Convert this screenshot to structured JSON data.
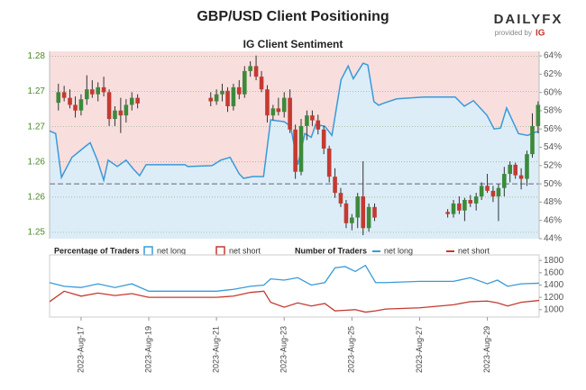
{
  "header": {
    "title": "GBP/USD Client Positioning",
    "subtitle": "IG Client Sentiment",
    "brand": "DAILYFX",
    "brand_note": "provided by",
    "brand_ig": "IG"
  },
  "chart_data": [
    {
      "type": "candlestick",
      "x": [
        16.33,
        16.5,
        16.67,
        16.83,
        17,
        17.17,
        17.33,
        17.5,
        17.67,
        17.83,
        18,
        18.17,
        18.33,
        18.5,
        18.67,
        20.83,
        21,
        21.17,
        21.33,
        21.5,
        21.67,
        21.83,
        22,
        22.17,
        22.33,
        22.5,
        22.67,
        22.83,
        23,
        23.17,
        23.33,
        23.5,
        23.67,
        23.83,
        24,
        24.17,
        24.33,
        24.5,
        24.67,
        24.83,
        25,
        25.17,
        25.33,
        25.5,
        25.67,
        27.83,
        28,
        28.17,
        28.33,
        28.5,
        28.67,
        28.83,
        29,
        29.17,
        29.33,
        29.5,
        29.67,
        29.83,
        30,
        30.17,
        30.33,
        30.5
      ],
      "open": [
        1.2733,
        1.2748,
        1.274,
        1.273,
        1.2722,
        1.2738,
        1.2752,
        1.2745,
        1.2755,
        1.2748,
        1.271,
        1.2722,
        1.2715,
        1.273,
        1.274,
        1.274,
        1.2735,
        1.2745,
        1.275,
        1.2728,
        1.2755,
        1.2745,
        1.2778,
        1.2785,
        1.277,
        1.2752,
        1.2715,
        1.2725,
        1.272,
        1.274,
        1.2695,
        1.2635,
        1.27,
        1.2715,
        1.2708,
        1.2695,
        1.2668,
        1.2628,
        1.2605,
        1.259,
        1.2562,
        1.257,
        1.26,
        1.2555,
        1.2585,
        1.2578,
        1.2575,
        1.259,
        1.258,
        1.2595,
        1.259,
        1.26,
        1.2615,
        1.2608,
        1.26,
        1.2612,
        1.2632,
        1.2645,
        1.263,
        1.2625,
        1.266,
        1.27
      ],
      "high": [
        1.276,
        1.2757,
        1.2752,
        1.2742,
        1.2745,
        1.2772,
        1.2765,
        1.2762,
        1.277,
        1.2752,
        1.2728,
        1.274,
        1.2738,
        1.2748,
        1.2745,
        1.2748,
        1.2752,
        1.276,
        1.2755,
        1.276,
        1.2765,
        1.2785,
        1.2792,
        1.28,
        1.2778,
        1.2758,
        1.273,
        1.274,
        1.2748,
        1.2752,
        1.2702,
        1.271,
        1.2722,
        1.2722,
        1.2716,
        1.27,
        1.2672,
        1.264,
        1.2612,
        1.2595,
        1.2575,
        1.2605,
        1.265,
        1.259,
        1.259,
        1.2582,
        1.2595,
        1.26,
        1.2598,
        1.2602,
        1.2605,
        1.262,
        1.2632,
        1.2615,
        1.2618,
        1.2642,
        1.265,
        1.2648,
        1.264,
        1.2665,
        1.2718,
        1.2735
      ],
      "low": [
        1.2722,
        1.2735,
        1.2725,
        1.2712,
        1.2715,
        1.273,
        1.274,
        1.2735,
        1.2742,
        1.27,
        1.27,
        1.269,
        1.2705,
        1.2722,
        1.2725,
        1.2728,
        1.273,
        1.2735,
        1.272,
        1.2722,
        1.2738,
        1.274,
        1.277,
        1.2765,
        1.2748,
        1.2705,
        1.2708,
        1.2715,
        1.2712,
        1.269,
        1.2625,
        1.263,
        1.268,
        1.27,
        1.2688,
        1.266,
        1.262,
        1.2598,
        1.2585,
        1.2555,
        1.2552,
        1.2555,
        1.2545,
        1.255,
        1.2565,
        1.257,
        1.257,
        1.2575,
        1.2565,
        1.2585,
        1.258,
        1.2595,
        1.2605,
        1.2592,
        1.2565,
        1.26,
        1.262,
        1.2625,
        1.261,
        1.2615,
        1.2655,
        1.269
      ],
      "close": [
        1.2748,
        1.274,
        1.273,
        1.2722,
        1.2738,
        1.2752,
        1.2745,
        1.2755,
        1.2748,
        1.271,
        1.2722,
        1.2715,
        1.273,
        1.274,
        1.2732,
        1.2735,
        1.2745,
        1.275,
        1.2728,
        1.2755,
        1.2745,
        1.2778,
        1.2785,
        1.277,
        1.2752,
        1.2715,
        1.2725,
        1.272,
        1.274,
        1.2695,
        1.2635,
        1.27,
        1.2715,
        1.2708,
        1.2695,
        1.2668,
        1.2628,
        1.2605,
        1.259,
        1.2562,
        1.257,
        1.26,
        1.2555,
        1.2585,
        1.257,
        1.2575,
        1.259,
        1.258,
        1.2595,
        1.259,
        1.26,
        1.2615,
        1.2608,
        1.26,
        1.2612,
        1.2632,
        1.2645,
        1.263,
        1.2625,
        1.266,
        1.27,
        1.273
      ],
      "color_up": "#3c8a3a",
      "color_down": "#c43a31",
      "xlim": [
        16.07,
        30.53
      ],
      "ylim": [
        1.254,
        1.2806
      ],
      "yticks": [
        {
          "value": 1.2799,
          "label": "1.28"
        },
        {
          "value": 1.2749,
          "label": "1.27"
        },
        {
          "value": 1.2699,
          "label": "1.27"
        },
        {
          "value": 1.2649,
          "label": "1.26"
        },
        {
          "value": 1.2599,
          "label": "1.26"
        },
        {
          "value": 1.2549,
          "label": "1.25"
        }
      ],
      "y2lim": [
        44,
        64.5
      ],
      "y2ticks": [
        {
          "value": 64,
          "label": "64%"
        },
        {
          "value": 62,
          "label": "62%"
        },
        {
          "value": 60,
          "label": "60%"
        },
        {
          "value": 58,
          "label": "58%"
        },
        {
          "value": 56,
          "label": "56%"
        },
        {
          "value": 54,
          "label": "54%"
        },
        {
          "value": 52,
          "label": "52%"
        },
        {
          "value": 50,
          "label": "50%"
        },
        {
          "value": 48,
          "label": "48%"
        },
        {
          "value": 46,
          "label": "46%"
        },
        {
          "value": 44,
          "label": "44%"
        }
      ],
      "y2_reference": 50,
      "grid": true,
      "legend_title": "Percentage of Traders",
      "series": [
        {
          "name": "net long",
          "color": "#3a9ad9",
          "fill": "#dcedf8",
          "axis": "y2",
          "x": [
            16.07,
            16.25,
            16.42,
            16.73,
            17.13,
            17.27,
            17.48,
            17.67,
            17.8,
            18.07,
            18.33,
            18.55,
            18.73,
            18.92,
            20.07,
            20.15,
            20.87,
            21.13,
            21.4,
            21.67,
            21.8,
            22.07,
            22.39,
            22.6,
            23.0,
            23.19,
            23.4,
            23.61,
            23.8,
            23.93,
            24.2,
            24.41,
            24.68,
            24.89,
            25.04,
            25.33,
            25.47,
            25.65,
            25.79,
            25.92,
            26.32,
            27.12,
            28.05,
            28.32,
            28.59,
            28.99,
            29.2,
            29.39,
            29.57,
            29.92,
            30.19,
            30.45,
            30.53
          ],
          "values": [
            55.8,
            55.5,
            50.7,
            52.9,
            54.1,
            54.5,
            52.6,
            50.4,
            52.6,
            51.9,
            52.6,
            51.6,
            50.9,
            52.1,
            52.1,
            51.9,
            52.0,
            52.6,
            52.9,
            51.1,
            50.6,
            50.8,
            50.8,
            57.0,
            56.8,
            56.3,
            52.1,
            55.5,
            55.1,
            56.5,
            56.3,
            55.3,
            61.4,
            62.9,
            61.5,
            63.2,
            63.0,
            59.0,
            58.6,
            58.8,
            59.3,
            59.5,
            59.5,
            58.5,
            59.1,
            57.5,
            56.0,
            56.1,
            58.3,
            55.5,
            55.3,
            55.7,
            55.6
          ]
        },
        {
          "name": "net short",
          "color": "#c43a31",
          "fill": "#f9dede"
        }
      ]
    },
    {
      "type": "line",
      "legend_title": "Number of Traders",
      "xlim": [
        16.07,
        30.53
      ],
      "xticks": [
        {
          "value": 17,
          "label": "2023-Aug-17"
        },
        {
          "value": 19,
          "label": "2023-Aug-19"
        },
        {
          "value": 21,
          "label": "2023-Aug-21"
        },
        {
          "value": 23,
          "label": "2023-Aug-23"
        },
        {
          "value": 25,
          "label": "2023-Aug-25"
        },
        {
          "value": 27,
          "label": "2023-Aug-27"
        },
        {
          "value": 29,
          "label": "2023-Aug-29"
        }
      ],
      "ylim": [
        880,
        1890
      ],
      "yticks": [
        1800,
        1600,
        1400,
        1200,
        1000
      ],
      "x": [
        16.07,
        16.5,
        17,
        17.5,
        18,
        18.5,
        19,
        20,
        21,
        21.5,
        22,
        22.4,
        22.6,
        23,
        23.4,
        23.8,
        24.2,
        24.5,
        24.8,
        25.1,
        25.4,
        25.7,
        26,
        27,
        28,
        28.5,
        29,
        29.3,
        29.6,
        30,
        30.53
      ],
      "series": [
        {
          "name": "net long",
          "color": "#3a9ad9",
          "values": [
            1440,
            1380,
            1360,
            1420,
            1360,
            1420,
            1300,
            1300,
            1300,
            1330,
            1380,
            1400,
            1500,
            1480,
            1520,
            1400,
            1440,
            1680,
            1700,
            1620,
            1720,
            1440,
            1440,
            1460,
            1460,
            1520,
            1420,
            1480,
            1380,
            1420,
            1430
          ]
        },
        {
          "name": "net short",
          "color": "#c43a31",
          "values": [
            1130,
            1300,
            1220,
            1270,
            1230,
            1260,
            1200,
            1200,
            1200,
            1220,
            1280,
            1300,
            1120,
            1040,
            1110,
            1060,
            1100,
            980,
            990,
            1000,
            960,
            980,
            1010,
            1030,
            1080,
            1130,
            1140,
            1110,
            1060,
            1120,
            1150
          ]
        }
      ]
    }
  ]
}
